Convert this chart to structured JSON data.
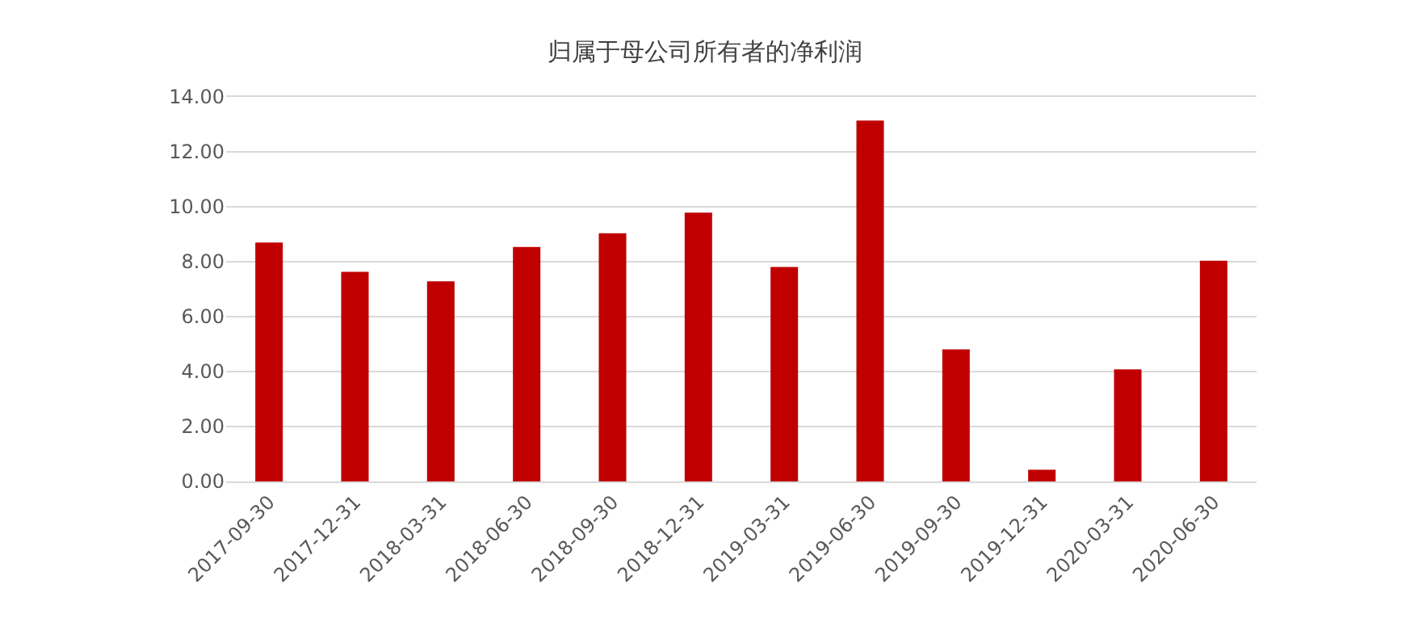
{
  "chart_data": {
    "type": "bar",
    "title": "归属于母公司所有者的净利润",
    "categories": [
      "2017-09-30",
      "2017-12-31",
      "2018-03-31",
      "2018-06-30",
      "2018-09-30",
      "2018-12-31",
      "2019-03-31",
      "2019-06-30",
      "2019-09-30",
      "2019-12-31",
      "2020-03-31",
      "2020-06-30"
    ],
    "values": [
      8.7,
      7.63,
      7.29,
      8.54,
      9.04,
      9.79,
      7.81,
      13.14,
      4.81,
      0.43,
      4.08,
      8.04
    ],
    "color": "#c00000",
    "ylim": [
      0,
      14
    ],
    "yticks": [
      {
        "value": 0,
        "label": "0.00"
      },
      {
        "value": 2,
        "label": "2.00"
      },
      {
        "value": 4,
        "label": "4.00"
      },
      {
        "value": 6,
        "label": "6.00"
      },
      {
        "value": 8,
        "label": "8.00"
      },
      {
        "value": 10,
        "label": "10.00"
      },
      {
        "value": 12,
        "label": "12.00"
      },
      {
        "value": 14,
        "label": "14.00"
      }
    ],
    "grid": "y"
  }
}
